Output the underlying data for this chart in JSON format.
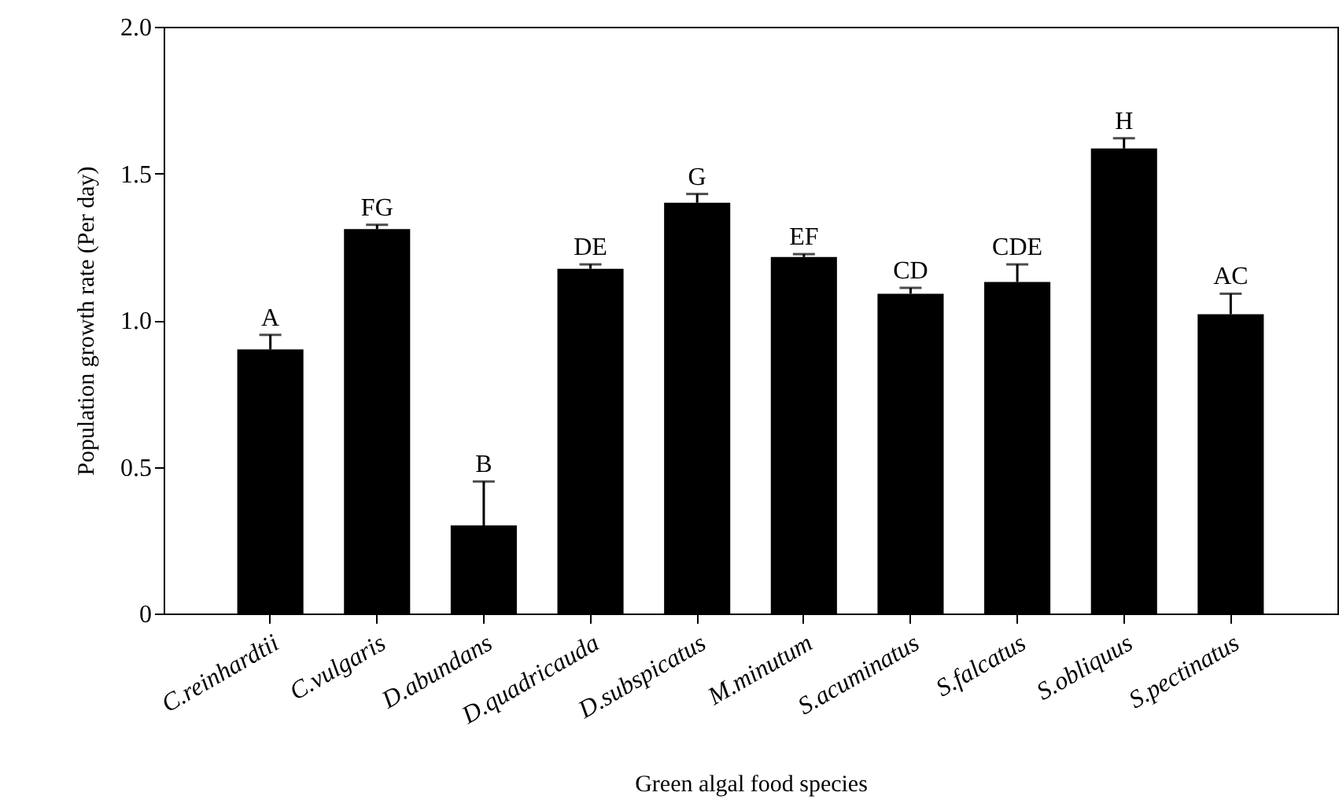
{
  "chart_data": {
    "type": "bar",
    "xlabel": "Green algal food species",
    "ylabel": "Population growth rate (Per day)",
    "categories": [
      "C.reinhardtii",
      "C.vulgaris",
      "D.abundans",
      "D.quadricauda",
      "D.subspicatus",
      "M.minutum",
      "S.acuminatus",
      "S.falcatus",
      "S.obliquus",
      "S.pectinatus"
    ],
    "values": [
      0.9,
      1.31,
      0.3,
      1.175,
      1.4,
      1.215,
      1.09,
      1.13,
      1.585,
      1.02
    ],
    "errors": [
      [
        0.9,
        0.95
      ],
      [
        1.31,
        1.325
      ],
      [
        0.3,
        0.45
      ],
      [
        1.175,
        1.19
      ],
      [
        1.4,
        1.43
      ],
      [
        1.215,
        1.225
      ],
      [
        1.09,
        1.11
      ],
      [
        1.13,
        1.19
      ],
      [
        1.585,
        1.62
      ],
      [
        1.02,
        1.09
      ]
    ],
    "color": "#000000",
    "ylim": [
      0,
      2
    ],
    "yticks": [
      {
        "value": 0,
        "label": "0"
      },
      {
        "value": 0.5,
        "label": "0.5"
      },
      {
        "value": 1,
        "label": "1.0"
      },
      {
        "value": 1.5,
        "label": "1.5"
      },
      {
        "value": 2,
        "label": "2.0"
      }
    ],
    "grid": false,
    "annotations": [
      {
        "text": "A",
        "x": "C.reinhardtii",
        "y": 0.95
      },
      {
        "text": "FG",
        "x": "C.vulgaris",
        "y": 1.325
      },
      {
        "text": "B",
        "x": "D.abundans",
        "y": 0.45
      },
      {
        "text": "DE",
        "x": "D.quadricauda",
        "y": 1.19
      },
      {
        "text": "G",
        "x": "D.subspicatus",
        "y": 1.43
      },
      {
        "text": "EF",
        "x": "M.minutum",
        "y": 1.225
      },
      {
        "text": "CD",
        "x": "S.acuminatus",
        "y": 1.11
      },
      {
        "text": "CDE",
        "x": "S.falcatus",
        "y": 1.19
      },
      {
        "text": "H",
        "x": "S.obliquus",
        "y": 1.62
      },
      {
        "text": "AC",
        "x": "S.pectinatus",
        "y": 1.09
      }
    ]
  }
}
